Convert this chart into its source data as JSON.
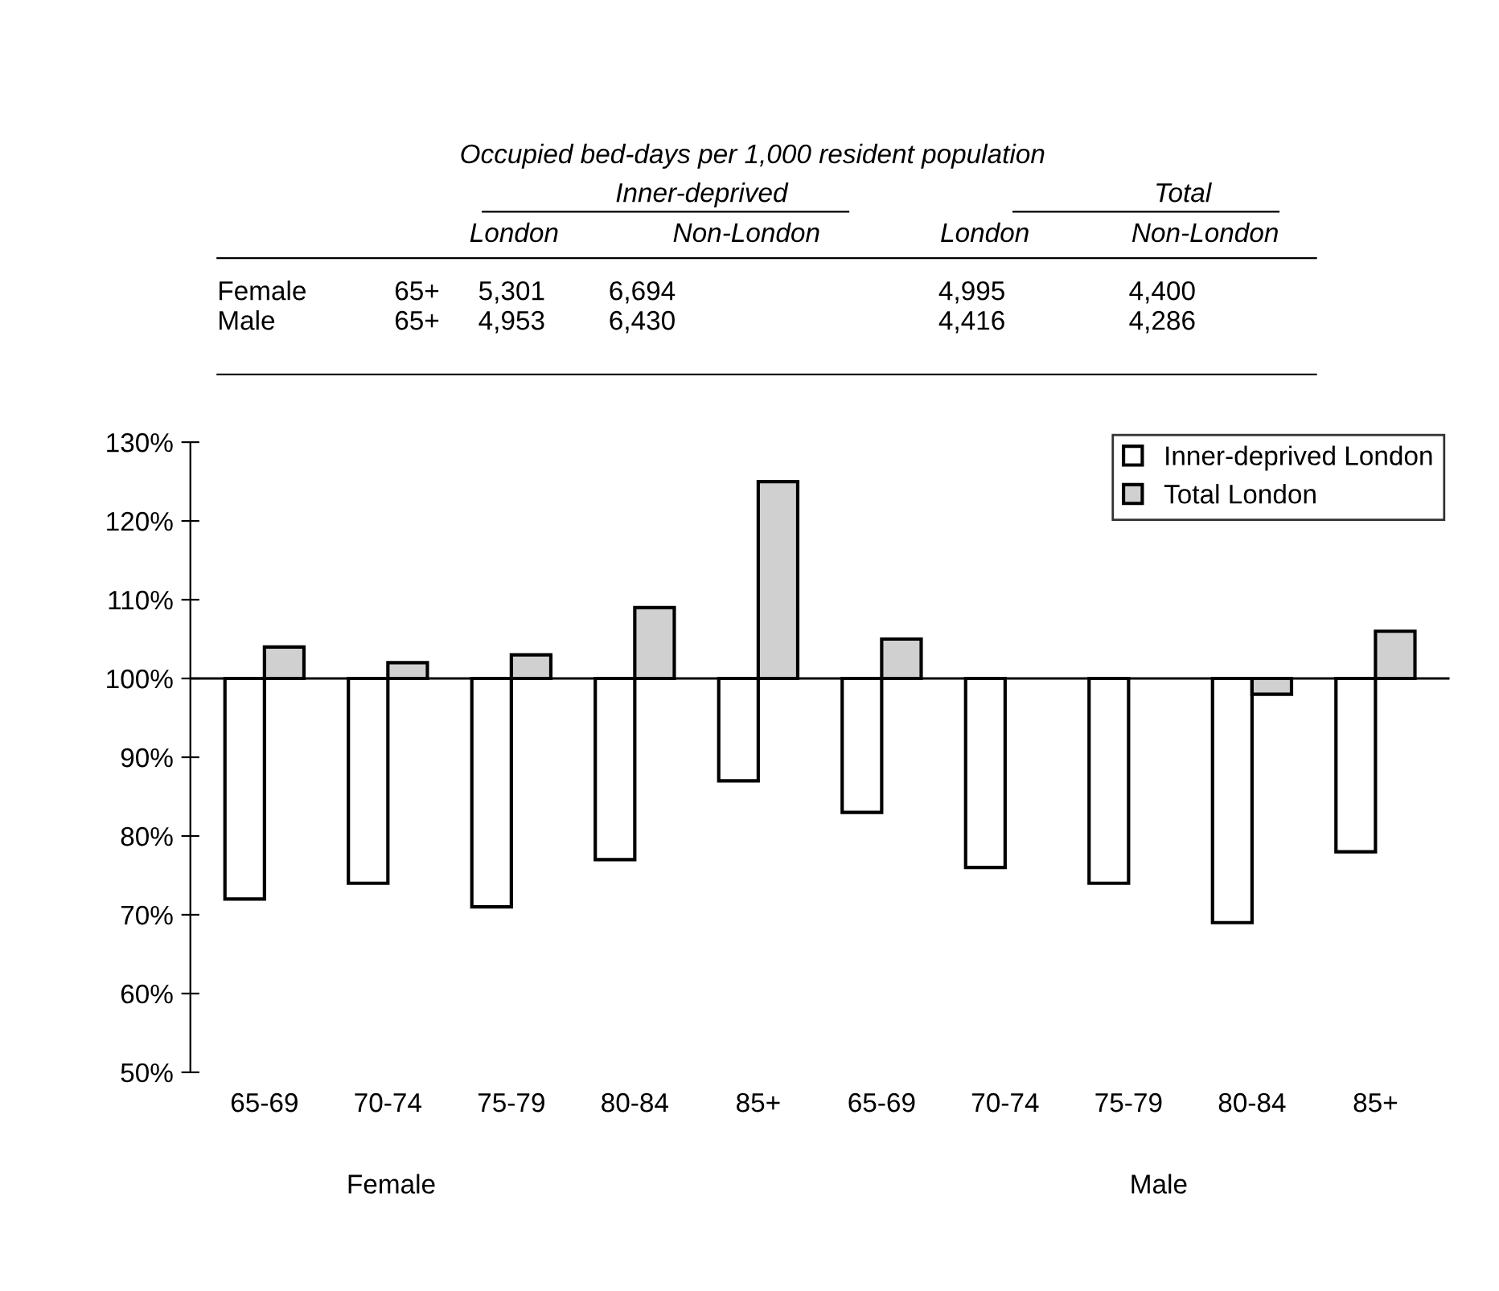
{
  "chart_data": {
    "type": "bar",
    "title": "Occupied bed-days per 1,000 resident population",
    "categories": [
      "65-69",
      "70-74",
      "75-79",
      "80-84",
      "85+",
      "65-69",
      "70-74",
      "75-79",
      "80-84",
      "85+"
    ],
    "series": [
      {
        "name": "Inner-deprived London",
        "color": "#ffffff",
        "base": [
          100,
          100,
          100,
          100,
          100,
          100,
          100,
          100,
          100,
          100
        ],
        "values": [
          -28,
          -26,
          -29,
          -23,
          -13,
          -17,
          -24,
          -26,
          -31,
          -22
        ]
      },
      {
        "name": "Total London",
        "color": "#d0d0d0",
        "base": [
          100,
          100,
          100,
          100,
          100,
          100,
          null,
          null,
          100,
          100
        ],
        "values": [
          4,
          2,
          3,
          9,
          25,
          5,
          null,
          null,
          -2,
          6
        ]
      }
    ],
    "ylim": [
      50,
      130
    ],
    "yticks": [
      {
        "value": 50,
        "label": "50%"
      },
      {
        "value": 60,
        "label": "60%"
      },
      {
        "value": 70,
        "label": "70%"
      },
      {
        "value": 80,
        "label": "80%"
      },
      {
        "value": 90,
        "label": "90%"
      },
      {
        "value": 100,
        "label": "100%"
      },
      {
        "value": 110,
        "label": "110%"
      },
      {
        "value": 120,
        "label": "120%"
      },
      {
        "value": 130,
        "label": "130%"
      }
    ],
    "grid": false,
    "ref_lines": [
      {
        "axis": "y",
        "value": 100,
        "color": "#000000"
      }
    ],
    "legend": "top right",
    "annotations": [
      "Inner-deprived",
      "Total",
      "London",
      "Non-London",
      "London",
      "Non-London",
      "Female",
      "65+",
      "5,301",
      "6,694",
      "4,995",
      "4,400",
      "Male",
      "65+",
      "4,953",
      "6,430",
      "4,416",
      "4,286",
      "Female",
      "Male"
    ]
  }
}
